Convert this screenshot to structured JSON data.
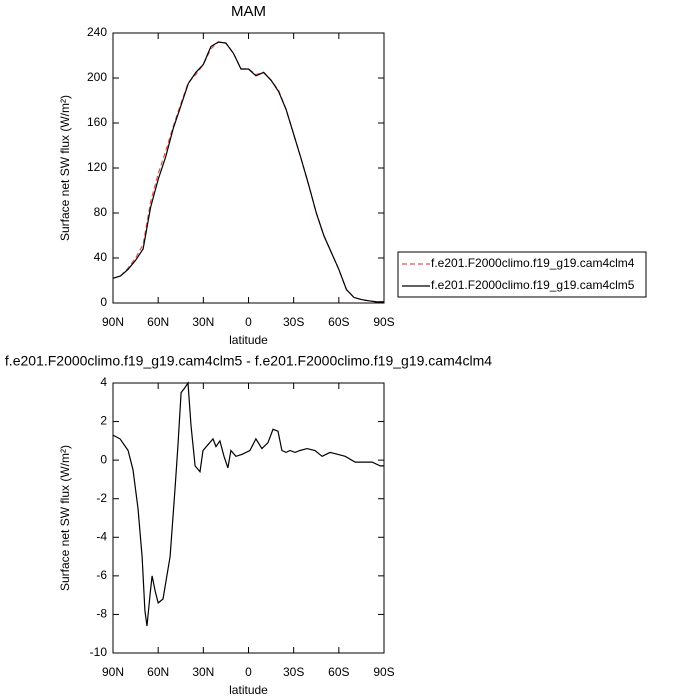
{
  "chart_data": [
    {
      "type": "line",
      "title": "MAM",
      "xlabel": "latitude",
      "ylabel": "Surface net SW flux (W/m²)",
      "x": [
        90,
        85,
        80,
        75,
        70,
        65,
        60,
        55,
        50,
        45,
        40,
        35,
        30,
        25,
        20,
        15,
        10,
        5,
        0,
        -5,
        -10,
        -15,
        -20,
        -25,
        -30,
        -35,
        -40,
        -45,
        -50,
        -55,
        -60,
        -65,
        -70,
        -75,
        -80,
        -85,
        -90
      ],
      "series": [
        {
          "name": "f.e201.F2000climo.f19_g19.cam4clm4",
          "color": "#e05050",
          "style": "dashed",
          "values": [
            22,
            24,
            31,
            40,
            52,
            90,
            115,
            135,
            157,
            177,
            196,
            203,
            212,
            226,
            232,
            231,
            222,
            208,
            208,
            203,
            205,
            198,
            189,
            172,
            150,
            128,
            105,
            80,
            60,
            45,
            30,
            12,
            5,
            3,
            2,
            1,
            1
          ]
        },
        {
          "name": "f.e201.F2000climo.f19_g19.cam4clm5",
          "color": "#000000",
          "style": "solid",
          "values": [
            22,
            24,
            30,
            38,
            48,
            85,
            110,
            130,
            155,
            175,
            195,
            205,
            212,
            228,
            232,
            231,
            222,
            208,
            208,
            202,
            205,
            198,
            188,
            172,
            150,
            128,
            105,
            80,
            60,
            45,
            30,
            12,
            5,
            3,
            2,
            1,
            1
          ]
        }
      ],
      "xlim": [
        90,
        -90
      ],
      "xticks": [
        {
          "value": 90,
          "label": "90N"
        },
        {
          "value": 60,
          "label": "60N"
        },
        {
          "value": 30,
          "label": "30N"
        },
        0,
        {
          "value": -30,
          "label": "30S"
        },
        {
          "value": -60,
          "label": "60S"
        },
        {
          "value": -90,
          "label": "90S"
        }
      ],
      "ylim": [
        0,
        240
      ],
      "yticks": [
        0,
        40,
        80,
        120,
        160,
        200,
        240
      ],
      "legend": "right"
    },
    {
      "type": "line",
      "title": "f.e201.F2000climo.f19_g19.cam4clm5 - f.e201.F2000climo.f19_g19.cam4clm4",
      "xlabel": "latitude",
      "ylabel": "Surface net SW flux (W/m²)",
      "x": [
        90,
        85.3,
        80,
        76.7,
        73.4,
        70.7,
        68.8,
        67.4,
        65.4,
        64,
        62,
        60,
        56.8,
        52.1,
        48.8,
        46.8,
        44.8,
        42.8,
        40.2,
        38.2,
        35.5,
        32.2,
        30.2,
        26.9,
        23.6,
        21.6,
        19,
        16.3,
        13.7,
        11.7,
        8.4,
        4.4,
        -0.9,
        -4.9,
        -8.9,
        -12.9,
        -16.3,
        -19.6,
        -22.2,
        -24.9,
        -27.6,
        -30.9,
        -34.2,
        -38.9,
        -44.2,
        -48.9,
        -54.2,
        -59.5,
        -64.2,
        -70.9,
        -77.5,
        -82.1,
        -87.5,
        -90
      ],
      "values": [
        1.3,
        1.1,
        0.5,
        -0.5,
        -2.5,
        -5,
        -7.8,
        -8.6,
        -7,
        -6,
        -6.8,
        -7.4,
        -7.2,
        -5,
        -1.5,
        0.8,
        3.5,
        3.7,
        4,
        1.8,
        -0.3,
        -0.6,
        0.5,
        0.8,
        1.1,
        0.7,
        1.0,
        0.2,
        -0.4,
        0.5,
        0.2,
        0.3,
        0.5,
        1.1,
        0.6,
        0.9,
        1.6,
        1.5,
        0.5,
        0.4,
        0.5,
        0.4,
        0.5,
        0.6,
        0.5,
        0.2,
        0.4,
        0.3,
        0.2,
        -0.1,
        -0.1,
        -0.1,
        -0.3,
        -0.3
      ],
      "color": "#000000",
      "xlim": [
        90,
        -90
      ],
      "xticks": [
        {
          "value": 90,
          "label": "90N"
        },
        {
          "value": 60,
          "label": "60N"
        },
        {
          "value": 30,
          "label": "30N"
        },
        0,
        {
          "value": -30,
          "label": "30S"
        },
        {
          "value": -60,
          "label": "60S"
        },
        {
          "value": -90,
          "label": "90S"
        }
      ],
      "ylim": [
        -10,
        4
      ],
      "yticks": [
        -10,
        -8,
        -6,
        -4,
        -2,
        0,
        2,
        4
      ]
    }
  ]
}
